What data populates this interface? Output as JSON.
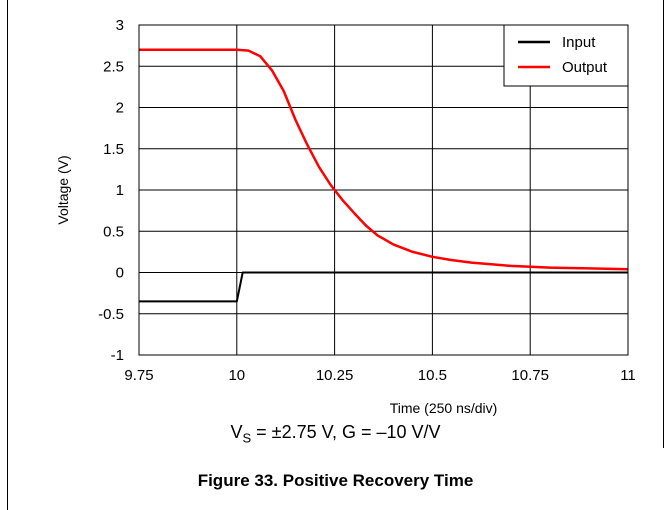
{
  "chart_data": {
    "type": "line",
    "xlabel": "Time (250 ns/div)",
    "ylabel": "Voltage (V)",
    "xlim": [
      9.75,
      11
    ],
    "ylim": [
      -1,
      3
    ],
    "x_ticks": [
      "9.75",
      "10",
      "10.25",
      "10.5",
      "10.75",
      "11"
    ],
    "y_ticks": [
      "-1",
      "-0.5",
      "0",
      "0.5",
      "1",
      "1.5",
      "2",
      "2.5",
      "3"
    ],
    "grid": true,
    "legend_position": "top-right",
    "series": [
      {
        "name": "Input",
        "color": "#000000",
        "x": [
          9.75,
          10.0,
          10.015,
          11.0
        ],
        "y": [
          -0.35,
          -0.35,
          0.0,
          0.0
        ]
      },
      {
        "name": "Output",
        "color": "#ff0000",
        "x": [
          9.75,
          9.8,
          9.9,
          10.0,
          10.03,
          10.06,
          10.09,
          10.12,
          10.15,
          10.18,
          10.21,
          10.24,
          10.27,
          10.3,
          10.33,
          10.36,
          10.4,
          10.45,
          10.5,
          10.55,
          10.6,
          10.65,
          10.7,
          10.75,
          10.8,
          10.9,
          11.0
        ],
        "y": [
          2.7,
          2.7,
          2.7,
          2.7,
          2.69,
          2.62,
          2.45,
          2.2,
          1.85,
          1.55,
          1.28,
          1.06,
          0.88,
          0.72,
          0.57,
          0.45,
          0.34,
          0.25,
          0.19,
          0.15,
          0.12,
          0.1,
          0.08,
          0.07,
          0.06,
          0.05,
          0.04
        ]
      }
    ]
  },
  "condition": {
    "prefix": "V",
    "subscript": "S",
    "rest": " = ±2.75 V, G = –10 V/V"
  },
  "caption": "Figure 33. Positive Recovery Time"
}
